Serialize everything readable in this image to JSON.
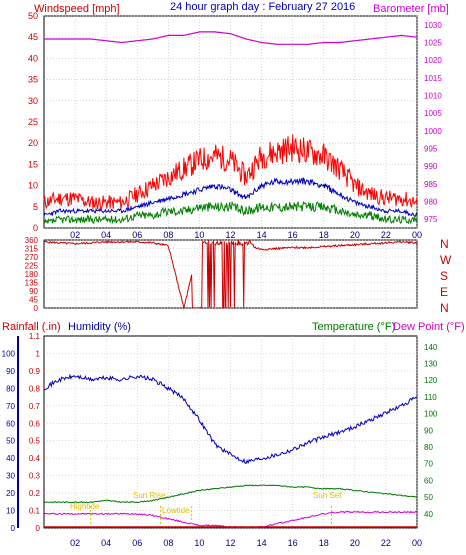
{
  "header": {
    "left_label": "Windspeed [mph]",
    "title": "24 hour graph day : February 27 2016",
    "right_label": "Barometer [mb]"
  },
  "compass": [
    "N",
    "W",
    "S",
    "E",
    "N"
  ],
  "lower_header": {
    "rainfall": "Rainfall (.in)",
    "humidity": "Humidity (%)",
    "temperature": "Temperature (°F)",
    "dewpoint": "Dew Point (°F)"
  },
  "annotations": {
    "hightide": "Hightide",
    "sunrise": "Sun Rise",
    "lowtide": "Lowtide",
    "sunset": "Sun Set"
  },
  "colors": {
    "wind_gust": "#ff0000",
    "wind_avg": "#0000c0",
    "wind_min": "#008000",
    "barometer": "#cc00cc",
    "direction": "#cc0000",
    "humidity": "#0000c0",
    "temperature": "#007700",
    "dewpoint": "#cc00cc",
    "rain_axis": "#cc0000",
    "humidity_axis": "#0000a0",
    "annotation": "#e0c000"
  },
  "chart_data": [
    {
      "type": "line",
      "title": "24 hour graph day : February 27 2016",
      "x_ticks": [
        "02",
        "04",
        "06",
        "08",
        "10",
        "12",
        "14",
        "16",
        "18",
        "20",
        "22",
        "00"
      ],
      "y_left_label": "Windspeed [mph]",
      "y_left_ticks": [
        0,
        5,
        10,
        15,
        20,
        25,
        30,
        35,
        40,
        45,
        50
      ],
      "y_left_range": [
        0,
        50
      ],
      "y_right_label": "Barometer [mb]",
      "y_right_ticks": [
        975,
        980,
        985,
        990,
        995,
        1000,
        1005,
        1010,
        1015,
        1020,
        1025,
        1030
      ],
      "y_right_range": [
        972.5,
        1032.5
      ],
      "x_hours": [
        0,
        1,
        2,
        3,
        4,
        5,
        6,
        7,
        8,
        9,
        10,
        11,
        12,
        13,
        14,
        15,
        16,
        17,
        18,
        19,
        20,
        21,
        22,
        23,
        24
      ],
      "series": [
        {
          "axis": "left",
          "values": [
            6,
            7,
            7,
            6,
            6,
            6,
            8,
            10,
            12,
            14,
            16,
            17,
            16,
            12,
            17,
            18,
            19,
            18,
            17,
            14,
            10,
            8,
            7,
            7,
            6
          ]
        },
        {
          "axis": "left",
          "values": [
            3,
            4,
            4,
            4,
            4,
            4,
            5,
            6,
            7,
            8,
            9,
            10,
            9,
            7,
            10,
            11,
            11,
            11,
            10,
            8,
            6,
            5,
            4,
            4,
            3
          ]
        },
        {
          "axis": "left",
          "values": [
            1,
            2,
            2,
            2,
            2,
            2,
            3,
            3,
            4,
            4,
            5,
            5,
            5,
            4,
            5,
            5,
            5,
            5,
            5,
            4,
            3,
            3,
            2,
            2,
            2
          ]
        },
        {
          "axis": "right",
          "values": [
            1026,
            1026,
            1026,
            1026,
            1025.5,
            1025,
            1025.5,
            1026,
            1027,
            1027,
            1028,
            1028,
            1027.5,
            1026,
            1025,
            1024.5,
            1024.5,
            1024.5,
            1025,
            1025,
            1025.5,
            1026,
            1026.5,
            1027,
            1026.5
          ]
        }
      ]
    },
    {
      "type": "line",
      "y_ticks": [
        0,
        45,
        90,
        135,
        180,
        225,
        270,
        315,
        360
      ],
      "y_range": [
        0,
        360
      ],
      "x_hours": [
        0,
        1,
        2,
        3,
        4,
        5,
        6,
        7,
        8,
        9,
        10,
        11,
        12,
        13,
        14,
        15,
        16,
        17,
        18,
        19,
        20,
        21,
        22,
        23,
        24
      ],
      "values": [
        350,
        345,
        340,
        345,
        350,
        350,
        350,
        345,
        330,
        0,
        345,
        5,
        340,
        335,
        310,
        315,
        320,
        320,
        325,
        330,
        335,
        340,
        345,
        350,
        345
      ],
      "legend": [
        "N",
        "W",
        "S",
        "E",
        "N"
      ]
    },
    {
      "type": "line",
      "x_ticks": [
        "02",
        "04",
        "06",
        "08",
        "10",
        "12",
        "14",
        "16",
        "18",
        "20",
        "22",
        "00"
      ],
      "rain_label": "Rainfall (.in)",
      "rain_ticks": [
        0,
        0.1,
        0.2,
        0.3,
        0.4,
        0.5,
        0.6,
        0.7,
        0.8,
        0.9,
        1,
        1.1
      ],
      "humidity_label": "Humidity (%)",
      "humidity_ticks": [
        0,
        10,
        20,
        30,
        40,
        50,
        60,
        70,
        80,
        90,
        100
      ],
      "humidity_range": [
        0,
        110
      ],
      "temperature_label": "Temperature (°F)",
      "dewpoint_label": "Dew Point (°F)",
      "temp_ticks": [
        40,
        50,
        60,
        70,
        80,
        90,
        100,
        110,
        120,
        130,
        140
      ],
      "temp_range": [
        31.5,
        146.5
      ],
      "x_hours": [
        0,
        1,
        2,
        3,
        4,
        5,
        6,
        7,
        8,
        9,
        10,
        11,
        12,
        13,
        14,
        15,
        16,
        17,
        18,
        19,
        20,
        21,
        22,
        23,
        24
      ],
      "series": [
        {
          "name": "Humidity (%)",
          "axis": "humidity",
          "values": [
            80,
            85,
            87,
            85,
            86,
            85,
            87,
            85,
            80,
            74,
            62,
            48,
            42,
            38,
            40,
            42,
            45,
            49,
            52,
            55,
            58,
            62,
            66,
            70,
            75
          ]
        },
        {
          "name": "Temperature (°F)",
          "axis": "temp",
          "values": [
            47,
            47,
            47,
            47,
            48,
            47,
            47,
            48,
            50,
            52,
            54,
            55,
            56,
            57,
            57,
            57,
            56,
            56,
            55,
            55,
            54,
            53,
            52,
            51,
            50
          ]
        },
        {
          "name": "Dew Point (°F)",
          "axis": "temp",
          "values": [
            40,
            40,
            40,
            40,
            40,
            40,
            40,
            39,
            37,
            35,
            33,
            33,
            32,
            32,
            32,
            34,
            36,
            38,
            40,
            41,
            41,
            41,
            41,
            41,
            41
          ]
        }
      ],
      "rainfall": 0
    }
  ]
}
